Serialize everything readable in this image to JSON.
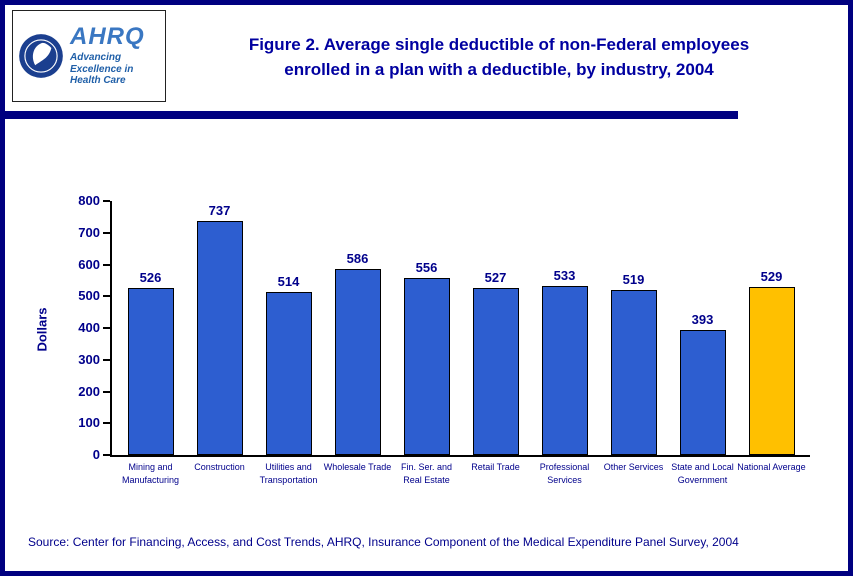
{
  "page": {
    "border_color": "#000080"
  },
  "header": {
    "logo": {
      "ahrq_label": "AHRQ",
      "tagline": "Advancing Excellence in Health Care",
      "seal_icon": "hhs-seal-icon"
    },
    "title_line1": "Figure 2. Average single deductible of non-Federal employees",
    "title_line2": "enrolled in a plan with a deductible, by industry, 2004"
  },
  "chart_data": {
    "type": "bar",
    "title": "Figure 2. Average single deductible of non-Federal employees enrolled in a plan with a deductible, by industry, 2004",
    "xlabel": "",
    "ylabel": "Dollars",
    "ylim": [
      0,
      800
    ],
    "yticks": [
      0,
      100,
      200,
      300,
      400,
      500,
      600,
      700,
      800
    ],
    "grid": false,
    "legend": false,
    "categories": [
      "Mining and Manufacturing",
      "Construction",
      "Utilities and Transportation",
      "Wholesale Trade",
      "Fin. Ser. and Real Estate",
      "Retail Trade",
      "Professional Services",
      "Other Services",
      "State and Local Government",
      "National Average"
    ],
    "values": [
      526,
      737,
      514,
      586,
      556,
      527,
      533,
      519,
      393,
      529
    ],
    "default_bar_color": "#2d5ed0",
    "highlight_index": 9,
    "highlight_color": "#ffc000"
  },
  "footer": {
    "source": "Source: Center for Financing, Access, and Cost Trends, AHRQ, Insurance Component of the Medical Expenditure Panel Survey, 2004"
  }
}
